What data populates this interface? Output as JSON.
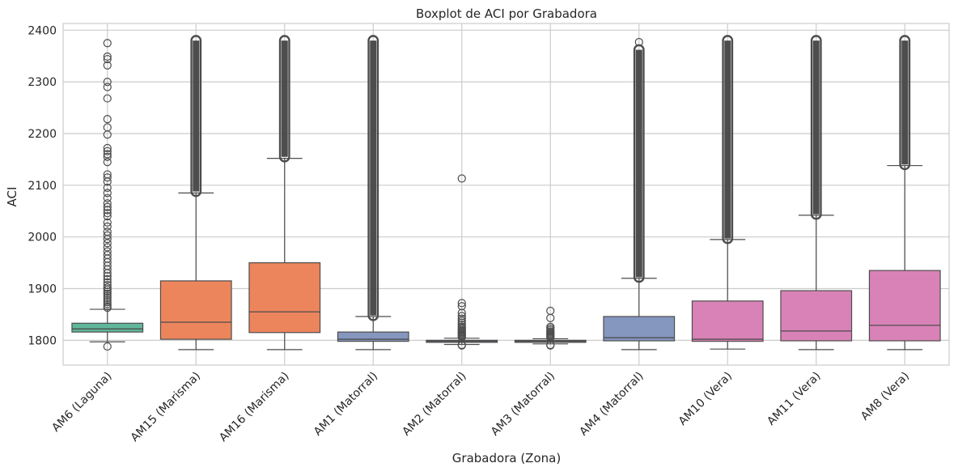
{
  "chart_data": {
    "type": "box",
    "title": "Boxplot de ACI por Grabadora",
    "xlabel": "Grabadora (Zona)",
    "ylabel": "ACI",
    "ylim": [
      1752,
      2413
    ],
    "yticks": [
      1800,
      1900,
      2000,
      2100,
      2200,
      2300,
      2400
    ],
    "grid": true,
    "categories": [
      "AM6 (Laguna)",
      "AM15 (Marisma)",
      "AM16 (Marisma)",
      "AM1 (Matorral)",
      "AM2 (Matorral)",
      "AM3 (Matorral)",
      "AM4 (Matorral)",
      "AM10 (Vera)",
      "AM11 (Vera)",
      "AM8 (Vera)"
    ],
    "zone_colors": {
      "Laguna": "#66c2a5",
      "Marisma": "#fc8d62",
      "Matorral": "#8da0cb",
      "Vera": "#e78ac3"
    },
    "boxes": [
      {
        "name": "AM6 (Laguna)",
        "zone": "Laguna",
        "whislo": 1797,
        "q1": 1816,
        "med": 1822,
        "q3": 1833,
        "whishi": 1860,
        "fliers_low": [
          1788
        ],
        "fliers_high": [
          1863,
          1866,
          1870,
          1874,
          1878,
          1882,
          1886,
          1890,
          1894,
          1898,
          1902,
          1907,
          1912,
          1918,
          1924,
          1930,
          1937,
          1944,
          1951,
          1958,
          1965,
          1972,
          1980,
          1988,
          1996,
          2003,
          2010,
          2020,
          2028,
          2040,
          2046,
          2052,
          2058,
          2065,
          2075,
          2085,
          2095,
          2107,
          2115,
          2121,
          2145,
          2155,
          2160,
          2166,
          2172,
          2198,
          2212,
          2228,
          2268,
          2290,
          2300,
          2332,
          2344,
          2349,
          2375
        ]
      },
      {
        "name": "AM15 (Marisma)",
        "zone": "Marisma",
        "whislo": 1782,
        "q1": 1802,
        "med": 1835,
        "q3": 1915,
        "whishi": 2085,
        "fliers_low": [],
        "flier_dense_high": [
          2088,
          2380
        ]
      },
      {
        "name": "AM16 (Marisma)",
        "zone": "Marisma",
        "whislo": 1782,
        "q1": 1815,
        "med": 1855,
        "q3": 1950,
        "whishi": 2152,
        "fliers_low": [],
        "flier_dense_high": [
          2155,
          2380
        ]
      },
      {
        "name": "AM1 (Matorral)",
        "zone": "Matorral",
        "whislo": 1782,
        "q1": 1798,
        "med": 1802,
        "q3": 1816,
        "whishi": 1846,
        "fliers_low": [],
        "flier_dense_high": [
          1848,
          2380
        ]
      },
      {
        "name": "AM2 (Matorral)",
        "zone": "Matorral",
        "whislo": 1792,
        "q1": 1796,
        "med": 1798,
        "q3": 1800,
        "whishi": 1804,
        "fliers_low": [
          1791,
          1790
        ],
        "fliers_high": [
          1806,
          1808,
          1810,
          1812,
          1814,
          1816,
          1818,
          1820,
          1823,
          1826,
          1830,
          1834,
          1838,
          1842,
          1847,
          1853,
          1866,
          1872,
          2113
        ]
      },
      {
        "name": "AM3 (Matorral)",
        "zone": "Matorral",
        "whislo": 1793,
        "q1": 1796,
        "med": 1798,
        "q3": 1800,
        "whishi": 1803,
        "fliers_low": [
          1791,
          1790
        ],
        "fliers_high": [
          1805,
          1807,
          1809,
          1811,
          1813,
          1815,
          1817,
          1820,
          1823,
          1826,
          1843,
          1857
        ]
      },
      {
        "name": "AM4 (Matorral)",
        "zone": "Matorral",
        "whislo": 1782,
        "q1": 1799,
        "med": 1805,
        "q3": 1846,
        "whishi": 1920,
        "fliers_low": [],
        "flier_dense_high": [
          1922,
          2362
        ],
        "fliers_high": [
          2377
        ]
      },
      {
        "name": "AM10 (Vera)",
        "zone": "Vera",
        "whislo": 1783,
        "q1": 1798,
        "med": 1802,
        "q3": 1876,
        "whishi": 1995,
        "fliers_low": [],
        "flier_dense_high": [
          1997,
          2380
        ]
      },
      {
        "name": "AM11 (Vera)",
        "zone": "Vera",
        "whislo": 1782,
        "q1": 1799,
        "med": 1818,
        "q3": 1896,
        "whishi": 2042,
        "fliers_low": [],
        "flier_dense_high": [
          2044,
          2380
        ]
      },
      {
        "name": "AM8 (Vera)",
        "zone": "Vera",
        "whislo": 1782,
        "q1": 1799,
        "med": 1829,
        "q3": 1935,
        "whishi": 2138,
        "fliers_low": [],
        "flier_dense_high": [
          2140,
          2380
        ]
      }
    ]
  }
}
